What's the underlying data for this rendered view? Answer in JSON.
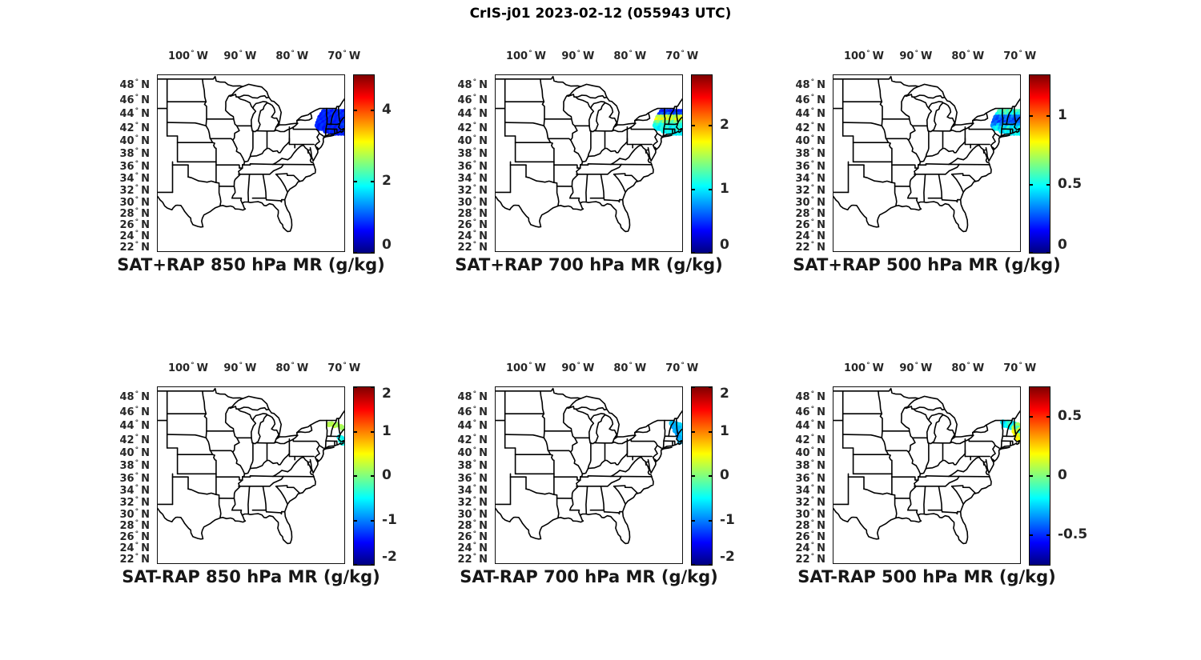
{
  "figure_title": "CrIS-j01 2023-02-12 (055943 UTC)",
  "colors": {
    "background": "#ffffff",
    "map_line": "#000000",
    "axis_text": "#262626",
    "title_text": "#171717",
    "colormap_stops": [
      "#000080",
      "#0000ff",
      "#00ffff",
      "#ffff00",
      "#ff0000",
      "#800000"
    ]
  },
  "map": {
    "projection": "mercator",
    "lon_range": [
      -106,
      -69.8
    ],
    "lat_range": [
      21.4,
      49.6
    ],
    "lon_ticks": [
      {
        "value": -100,
        "num": "100",
        "deg": "°",
        "hem": "W"
      },
      {
        "value": -90,
        "num": "90",
        "deg": "°",
        "hem": "W"
      },
      {
        "value": -80,
        "num": "80",
        "deg": "°",
        "hem": "W"
      },
      {
        "value": -70,
        "num": "70",
        "deg": "°",
        "hem": "W"
      }
    ],
    "lat_ticks": [
      {
        "value": 48,
        "num": "48",
        "deg": "°",
        "hem": "N"
      },
      {
        "value": 46,
        "num": "46",
        "deg": "°",
        "hem": "N"
      },
      {
        "value": 44,
        "num": "44",
        "deg": "°",
        "hem": "N"
      },
      {
        "value": 42,
        "num": "42",
        "deg": "°",
        "hem": "N"
      },
      {
        "value": 40,
        "num": "40",
        "deg": "°",
        "hem": "N"
      },
      {
        "value": 38,
        "num": "38",
        "deg": "°",
        "hem": "N"
      },
      {
        "value": 36,
        "num": "36",
        "deg": "°",
        "hem": "N"
      },
      {
        "value": 34,
        "num": "34",
        "deg": "°",
        "hem": "N"
      },
      {
        "value": 32,
        "num": "32",
        "deg": "°",
        "hem": "N"
      },
      {
        "value": 30,
        "num": "30",
        "deg": "°",
        "hem": "N"
      },
      {
        "value": 28,
        "num": "28",
        "deg": "°",
        "hem": "N"
      },
      {
        "value": 26,
        "num": "26",
        "deg": "°",
        "hem": "N"
      },
      {
        "value": 24,
        "num": "24",
        "deg": "°",
        "hem": "N"
      },
      {
        "value": 22,
        "num": "22",
        "deg": "°",
        "hem": "N"
      }
    ]
  },
  "chart_data": [
    {
      "id": "sat_plus_rap_850",
      "type": "scatter",
      "row": 0,
      "col": 0,
      "title": "SAT+RAP 850 hPa MR (g/kg)",
      "colorbar": {
        "min": 0,
        "max": 5,
        "ticks": [
          {
            "v": 0,
            "label": "0"
          },
          {
            "v": 2,
            "label": "2"
          },
          {
            "v": 4,
            "label": "4"
          }
        ]
      },
      "points_grid": {
        "lats": [
          44.55,
          44.15,
          43.75,
          43.35,
          42.95,
          42.55,
          42.15,
          41.75,
          41.45
        ],
        "lons": [
          [
            -73.9,
            -73.35,
            -72.8,
            -72.25,
            -71.7,
            -71.15,
            -70.6,
            -70.05
          ],
          [
            -74.25,
            -73.7,
            -73.15,
            -72.6,
            -72.05,
            -71.5,
            -70.95,
            -70.4,
            -69.9
          ],
          [
            -74.6,
            -74.05,
            -73.5,
            -72.95,
            -72.4,
            -71.85,
            -71.3,
            -70.75,
            -70.2
          ],
          [
            -74.8,
            -74.25,
            -73.7,
            -73.15,
            -72.6,
            -72.05,
            -71.5,
            -70.95,
            -70.4,
            -69.9
          ],
          [
            -75.0,
            -74.45,
            -73.9,
            -73.35,
            -72.8,
            -72.25,
            -71.7,
            -71.15,
            -70.6,
            -70.05
          ],
          [
            -75.15,
            -74.6,
            -74.05,
            -73.5,
            -72.95,
            -72.4,
            -71.85,
            -71.3,
            -70.75,
            -70.2
          ],
          [
            -74.85,
            -74.3,
            -73.75,
            -73.2,
            -72.65,
            -72.1,
            -71.55,
            -71.0,
            -70.45,
            -69.95
          ],
          [
            -73.55,
            -73.0,
            -72.45,
            -71.9,
            -71.35,
            -70.8,
            -70.25
          ],
          [
            -72.2,
            -71.65,
            -71.1,
            -70.55,
            -70.05
          ]
        ],
        "values": [
          [
            0.82,
            0.74,
            0.9,
            0.68,
            0.85,
            0.77,
            0.95,
            0.7
          ],
          [
            0.75,
            0.88,
            0.67,
            0.8,
            0.92,
            0.73,
            0.85,
            0.78,
            0.9
          ],
          [
            0.7,
            0.83,
            0.76,
            0.9,
            0.68,
            0.85,
            0.74,
            0.95,
            0.8
          ],
          [
            0.88,
            0.72,
            0.85,
            0.67,
            0.8,
            0.9,
            0.75,
            0.83,
            0.7,
            0.92
          ],
          [
            0.78,
            0.9,
            0.7,
            0.85,
            0.74,
            0.88,
            0.68,
            0.8,
            0.93,
            0.76
          ],
          [
            0.85,
            0.7,
            0.9,
            0.77,
            0.83,
            0.68,
            0.88,
            0.74,
            0.8,
            0.95
          ],
          [
            0.72,
            0.86,
            0.68,
            0.9,
            0.75,
            0.82,
            0.7,
            0.88,
            0.78,
            0.85
          ],
          [
            0.8,
            0.7,
            0.88,
            0.74,
            0.85,
            0.68,
            0.9
          ],
          [
            0.75,
            0.85,
            0.7,
            0.82,
            0.78
          ]
        ]
      }
    },
    {
      "id": "sat_plus_rap_700",
      "type": "scatter",
      "row": 0,
      "col": 1,
      "title": "SAT+RAP 700 hPa MR (g/kg)",
      "colorbar": {
        "min": 0,
        "max": 2.8,
        "ticks": [
          {
            "v": 0,
            "label": "0"
          },
          {
            "v": 1,
            "label": "1"
          },
          {
            "v": 2,
            "label": "2"
          }
        ]
      },
      "points_grid": {
        "lats": [
          44.55,
          44.15,
          43.75,
          43.35,
          42.95,
          42.55,
          42.15,
          41.75,
          41.45
        ],
        "lons": [
          [
            -73.9,
            -73.35,
            -72.8,
            -72.25,
            -71.7,
            -71.15,
            -70.6,
            -70.05
          ],
          [
            -74.25,
            -73.7,
            -73.15,
            -72.6,
            -72.05,
            -71.5,
            -70.95,
            -70.4,
            -69.9
          ],
          [
            -74.6,
            -74.05,
            -73.5,
            -72.95,
            -72.4,
            -71.85,
            -71.3,
            -70.75,
            -70.2
          ],
          [
            -74.8,
            -74.25,
            -73.7,
            -73.15,
            -72.6,
            -72.05,
            -71.5,
            -70.95,
            -70.4,
            -69.9
          ],
          [
            -75.0,
            -74.45,
            -73.9,
            -73.35,
            -72.8,
            -72.25,
            -71.7,
            -71.15,
            -70.6,
            -70.05
          ],
          [
            -75.15,
            -74.6,
            -74.05,
            -73.5,
            -72.95,
            -72.4,
            -71.85,
            -71.3,
            -70.75,
            -70.2
          ],
          [
            -74.85,
            -74.3,
            -73.75,
            -73.2,
            -72.65,
            -72.1,
            -71.55,
            -71.0,
            -70.45,
            -69.95
          ],
          [
            -73.55,
            -73.0,
            -72.45,
            -71.9,
            -71.35,
            -70.8,
            -70.25
          ],
          [
            -72.2,
            -71.65,
            -71.1,
            -70.55,
            -70.05
          ]
        ],
        "values": [
          [
            0.45,
            0.38,
            0.5,
            0.42,
            0.35,
            0.48,
            0.4,
            0.44
          ],
          [
            0.5,
            0.62,
            0.45,
            0.68,
            0.55,
            0.48,
            0.65,
            0.52,
            0.58
          ],
          [
            1.55,
            1.62,
            1.48,
            1.7,
            1.52,
            1.65,
            1.45,
            1.6,
            1.68
          ],
          [
            1.75,
            1.6,
            1.8,
            1.55,
            1.68,
            1.72,
            1.5,
            1.78,
            1.62,
            1.7
          ],
          [
            1.35,
            1.45,
            1.25,
            1.5,
            1.3,
            1.42,
            1.22,
            1.48,
            1.35,
            1.28
          ],
          [
            1.1,
            1.2,
            1.05,
            1.15,
            1.25,
            1.0,
            1.18,
            1.08,
            1.22,
            1.12
          ],
          [
            1.05,
            0.98,
            1.15,
            1.02,
            1.2,
            0.95,
            1.1,
            1.0,
            1.18,
            1.08
          ],
          [
            1.1,
            1.0,
            1.15,
            0.98,
            1.08,
            1.2,
            1.02
          ],
          [
            1.05,
            1.12,
            0.98,
            1.08,
            1.0
          ]
        ]
      }
    },
    {
      "id": "sat_plus_rap_500",
      "type": "scatter",
      "row": 0,
      "col": 2,
      "title": "SAT+RAP 500 hPa MR (g/kg)",
      "colorbar": {
        "min": 0,
        "max": 1.3,
        "ticks": [
          {
            "v": 0,
            "label": "0"
          },
          {
            "v": 0.5,
            "label": "0.5"
          },
          {
            "v": 1,
            "label": "1"
          }
        ]
      },
      "points_grid": {
        "lats": [
          44.55,
          44.15,
          43.75,
          43.35,
          42.95,
          42.55,
          42.15,
          41.75,
          41.45
        ],
        "lons": [
          [
            -73.9,
            -73.35,
            -72.8,
            -72.25,
            -71.7,
            -71.15,
            -70.6,
            -70.05
          ],
          [
            -74.25,
            -73.7,
            -73.15,
            -72.6,
            -72.05,
            -71.5,
            -70.95,
            -70.4,
            -69.9
          ],
          [
            -74.6,
            -74.05,
            -73.5,
            -72.95,
            -72.4,
            -71.85,
            -71.3,
            -70.75,
            -70.2
          ],
          [
            -74.8,
            -74.25,
            -73.7,
            -73.15,
            -72.6,
            -72.05,
            -71.5,
            -70.95,
            -70.4,
            -69.9
          ],
          [
            -75.0,
            -74.45,
            -73.9,
            -73.35,
            -72.8,
            -72.25,
            -71.7,
            -71.15,
            -70.6,
            -70.05
          ],
          [
            -75.15,
            -74.6,
            -74.05,
            -73.5,
            -72.95,
            -72.4,
            -71.85,
            -71.3,
            -70.75,
            -70.2
          ],
          [
            -74.85,
            -74.3,
            -73.75,
            -73.2,
            -72.65,
            -72.1,
            -71.55,
            -71.0,
            -70.45,
            -69.95
          ],
          [
            -73.55,
            -73.0,
            -72.45,
            -71.9,
            -71.35,
            -70.8,
            -70.25
          ],
          [
            -72.2,
            -71.65,
            -71.1,
            -70.55,
            -70.05
          ]
        ],
        "values": [
          [
            0.58,
            0.52,
            0.62,
            0.55,
            0.65,
            0.5,
            0.6,
            0.56
          ],
          [
            0.5,
            0.56,
            0.45,
            0.6,
            0.52,
            0.48,
            0.58,
            0.46,
            0.54
          ],
          [
            0.3,
            0.26,
            0.34,
            0.28,
            0.32,
            0.25,
            0.35,
            0.29,
            0.31
          ],
          [
            0.28,
            0.24,
            0.3,
            0.22,
            0.32,
            0.26,
            0.3,
            0.23,
            0.28,
            0.25
          ],
          [
            0.26,
            0.3,
            0.22,
            0.28,
            0.24,
            0.3,
            0.25,
            0.27,
            0.23,
            0.29
          ],
          [
            0.35,
            0.3,
            0.42,
            0.32,
            0.45,
            0.3,
            0.38,
            0.33,
            0.44,
            0.36
          ],
          [
            0.45,
            0.5,
            0.4,
            0.52,
            0.42,
            0.55,
            0.44,
            0.48,
            0.41,
            0.5
          ],
          [
            0.48,
            0.42,
            0.52,
            0.44,
            0.5,
            0.45,
            0.46
          ],
          [
            0.46,
            0.5,
            0.44,
            0.52,
            0.48
          ]
        ]
      }
    },
    {
      "id": "sat_minus_rap_850",
      "type": "scatter",
      "row": 1,
      "col": 0,
      "title": "SAT-RAP 850 hPa MR (g/kg)",
      "colorbar": {
        "min": -2,
        "max": 2,
        "ticks": [
          {
            "v": -2,
            "label": "-2"
          },
          {
            "v": -1,
            "label": "-1"
          },
          {
            "v": 0,
            "label": "0"
          },
          {
            "v": 1,
            "label": "1"
          },
          {
            "v": 2,
            "label": "2"
          }
        ]
      },
      "points": [
        [
          -72.9,
          44.45,
          0.22
        ],
        [
          -72.35,
          44.5,
          0.18
        ],
        [
          -71.85,
          44.3,
          0.28
        ],
        [
          -71.35,
          44.4,
          0.15
        ],
        [
          -70.6,
          44.1,
          0.2
        ],
        [
          -70.15,
          43.9,
          0.12
        ],
        [
          -70.9,
          42.6,
          -0.55
        ],
        [
          -70.45,
          42.45,
          -0.45
        ],
        [
          -70.1,
          42.2,
          -0.6
        ],
        [
          -70.65,
          42.1,
          -0.4
        ],
        [
          -69.95,
          41.85,
          -0.5
        ],
        [
          -70.3,
          41.75,
          -0.45
        ]
      ]
    },
    {
      "id": "sat_minus_rap_700",
      "type": "scatter",
      "row": 1,
      "col": 1,
      "title": "SAT-RAP 700 hPa MR (g/kg)",
      "colorbar": {
        "min": -2,
        "max": 2,
        "ticks": [
          {
            "v": -2,
            "label": "-2"
          },
          {
            "v": -1,
            "label": "-1"
          },
          {
            "v": 0,
            "label": "0"
          },
          {
            "v": 1,
            "label": "1"
          },
          {
            "v": 2,
            "label": "2"
          }
        ]
      },
      "points": [
        [
          -71.95,
          44.6,
          -0.7
        ],
        [
          -71.45,
          44.55,
          -0.8
        ],
        [
          -70.95,
          44.45,
          -0.75
        ],
        [
          -70.4,
          44.35,
          -0.65
        ],
        [
          -71.65,
          44.15,
          -0.85
        ],
        [
          -71.05,
          44.0,
          -0.75
        ],
        [
          -70.45,
          43.9,
          -0.8
        ],
        [
          -70.0,
          43.6,
          -0.7
        ],
        [
          -71.3,
          43.55,
          -0.8
        ],
        [
          -70.85,
          43.15,
          -0.9
        ],
        [
          -70.3,
          43.05,
          -0.8
        ],
        [
          -69.95,
          42.85,
          -0.7
        ],
        [
          -70.6,
          42.55,
          -0.9
        ],
        [
          -70.15,
          42.35,
          -0.8
        ],
        [
          -69.9,
          42.05,
          -0.85
        ],
        [
          -70.4,
          41.9,
          -0.75
        ]
      ]
    },
    {
      "id": "sat_minus_rap_500",
      "type": "scatter",
      "row": 1,
      "col": 2,
      "title": "SAT-RAP 500 hPa MR (g/kg)",
      "colorbar": {
        "min": -0.75,
        "max": 0.75,
        "ticks": [
          {
            "v": -0.5,
            "label": "-0.5"
          },
          {
            "v": 0,
            "label": "0"
          },
          {
            "v": 0.5,
            "label": "0.5"
          }
        ]
      },
      "points": [
        [
          -73.25,
          44.75,
          -0.2
        ],
        [
          -72.8,
          44.6,
          -0.3
        ],
        [
          -72.3,
          44.72,
          -0.15
        ],
        [
          -73.0,
          44.35,
          -0.25
        ],
        [
          -72.5,
          44.3,
          -0.18
        ],
        [
          -71.9,
          44.5,
          -0.1
        ],
        [
          -71.4,
          44.55,
          -0.25
        ],
        [
          -70.9,
          44.45,
          -0.15
        ],
        [
          -70.4,
          44.35,
          0.05
        ],
        [
          -71.7,
          44.05,
          -0.2
        ],
        [
          -71.1,
          43.95,
          0.08
        ],
        [
          -70.5,
          43.9,
          -0.1
        ],
        [
          -70.05,
          43.65,
          0.12
        ],
        [
          -71.05,
          43.45,
          0.18
        ],
        [
          -70.45,
          43.35,
          0.1
        ],
        [
          -69.95,
          43.15,
          -0.12
        ],
        [
          -70.75,
          42.95,
          0.2
        ],
        [
          -70.25,
          42.8,
          0.15
        ],
        [
          -69.9,
          42.55,
          0.08
        ],
        [
          -70.55,
          42.45,
          0.22
        ],
        [
          -70.1,
          42.2,
          0.18
        ]
      ]
    }
  ]
}
